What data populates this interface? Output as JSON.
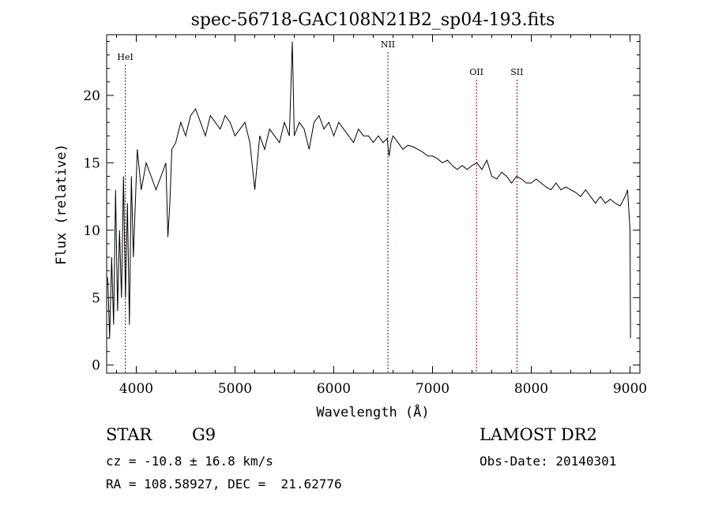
{
  "chart_data": {
    "type": "line",
    "title": "spec-56718-GAC108N21B2_sp04-193.fits",
    "xlabel": "Wavelength (Å)",
    "ylabel": "Flux (relative)",
    "xlim": [
      3700,
      9100
    ],
    "ylim": [
      -0.6,
      24.5
    ],
    "xticks": [
      4000,
      5000,
      6000,
      7000,
      8000,
      9000
    ],
    "yticks": [
      0,
      5,
      10,
      15,
      20
    ],
    "grid": false,
    "line_color": "#000000",
    "marker_color": "#8b0000",
    "lines": [
      {
        "name": "HeI",
        "x": 3889
      },
      {
        "name": "NII",
        "x": 6548
      },
      {
        "name": "OII",
        "x": 7445
      },
      {
        "name": "SII",
        "x": 7855
      }
    ],
    "series": [
      {
        "x": [
          3710,
          3730,
          3750,
          3770,
          3790,
          3810,
          3830,
          3850,
          3870,
          3890,
          3910,
          3930,
          3950,
          3970,
          3990,
          4010,
          4050,
          4100,
          4150,
          4200,
          4250,
          4300,
          4320,
          4340,
          4360,
          4400,
          4450,
          4500,
          4550,
          4600,
          4650,
          4700,
          4750,
          4800,
          4850,
          4900,
          4950,
          5000,
          5050,
          5100,
          5150,
          5200,
          5250,
          5300,
          5350,
          5400,
          5450,
          5500,
          5550,
          5580,
          5600,
          5650,
          5700,
          5750,
          5800,
          5850,
          5900,
          5950,
          6000,
          6050,
          6100,
          6150,
          6200,
          6250,
          6300,
          6350,
          6400,
          6450,
          6500,
          6540,
          6560,
          6580,
          6600,
          6650,
          6700,
          6750,
          6800,
          6850,
          6900,
          6950,
          7000,
          7050,
          7100,
          7150,
          7200,
          7250,
          7300,
          7350,
          7400,
          7450,
          7500,
          7550,
          7600,
          7650,
          7700,
          7750,
          7800,
          7850,
          7900,
          7950,
          8000,
          8050,
          8100,
          8150,
          8200,
          8250,
          8300,
          8350,
          8400,
          8450,
          8500,
          8550,
          8600,
          8650,
          8700,
          8750,
          8800,
          8850,
          8900,
          8950,
          8975,
          9000,
          9005
        ],
        "y": [
          6.5,
          2.0,
          8.0,
          3.0,
          13.0,
          4.0,
          10.0,
          5.0,
          14.0,
          5.0,
          12.0,
          3.0,
          14.0,
          8.0,
          12.0,
          16.0,
          13.0,
          15.0,
          14.0,
          13.0,
          14.0,
          15.0,
          9.5,
          12.0,
          16.0,
          16.5,
          18.0,
          17.0,
          18.5,
          19.0,
          18.0,
          17.0,
          18.5,
          18.0,
          17.5,
          18.5,
          18.0,
          17.0,
          17.5,
          18.0,
          16.5,
          13.0,
          17.0,
          16.0,
          17.5,
          17.0,
          16.5,
          18.0,
          17.0,
          24.0,
          17.0,
          18.0,
          17.5,
          16.0,
          18.0,
          18.5,
          17.5,
          18.0,
          17.0,
          18.0,
          17.5,
          17.0,
          16.5,
          17.5,
          17.0,
          17.0,
          16.5,
          17.0,
          16.5,
          16.8,
          15.5,
          16.5,
          17.0,
          16.5,
          16.0,
          16.3,
          16.2,
          16.0,
          15.8,
          15.5,
          15.5,
          15.3,
          15.0,
          15.2,
          14.8,
          14.5,
          14.8,
          14.5,
          14.8,
          15.0,
          14.5,
          15.2,
          14.0,
          13.8,
          14.3,
          14.0,
          13.5,
          14.0,
          13.8,
          13.5,
          13.5,
          13.8,
          13.5,
          13.2,
          13.0,
          13.5,
          13.0,
          13.2,
          13.0,
          12.8,
          12.5,
          13.0,
          12.5,
          12.0,
          12.5,
          12.0,
          12.3,
          12.0,
          11.8,
          12.5,
          13.0,
          10.0,
          2.0
        ]
      }
    ]
  },
  "footer": {
    "object_type": "STAR",
    "subclass": "G9",
    "redshift": "cz = -10.8 ± 16.8 km/s",
    "coordinates": "RA = 108.58927, DEC =  21.62776",
    "survey": "LAMOST DR2",
    "obs_date": "Obs-Date: 20140301"
  }
}
